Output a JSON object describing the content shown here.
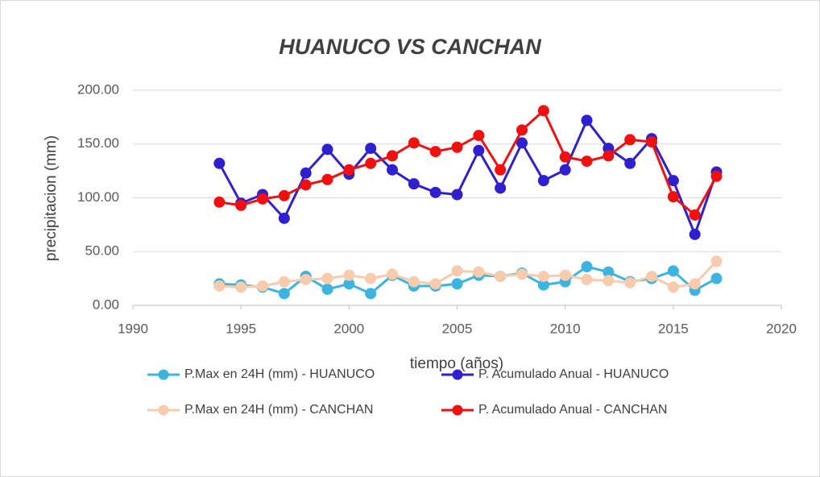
{
  "chart_data": {
    "type": "line",
    "title": "HUANUCO VS CANCHAN",
    "xlabel": "tiempo (años)",
    "ylabel": "precipitacion (mm)",
    "x": [
      1994,
      1995,
      1996,
      1997,
      1998,
      1999,
      2000,
      2001,
      2002,
      2003,
      2004,
      2005,
      2006,
      2007,
      2008,
      2009,
      2010,
      2011,
      2012,
      2013,
      2014,
      2015,
      2016,
      2017
    ],
    "series": [
      {
        "name": "P.Max en 24H (mm) - HUANUCO",
        "color": "#3cb4e0",
        "values": [
          20,
          19,
          17,
          11,
          27,
          15,
          20,
          11,
          28,
          18,
          18,
          20,
          28,
          27,
          30,
          19,
          22,
          36,
          31,
          22,
          25,
          32,
          14,
          25
        ]
      },
      {
        "name": "P. Acumulado Anual - HUANUCO",
        "color": "#2e1fd0",
        "values": [
          132,
          95,
          103,
          81,
          123,
          145,
          122,
          146,
          126,
          113,
          105,
          103,
          144,
          109,
          151,
          116,
          126,
          172,
          146,
          132,
          155,
          116,
          66,
          124
        ]
      },
      {
        "name": "P.Max en 24H (mm) - CANCHAN",
        "color": "#f8cbad",
        "values": [
          18,
          17,
          18,
          22,
          24,
          25,
          28,
          25,
          29,
          22,
          20,
          32,
          31,
          27,
          29,
          27,
          28,
          24,
          23,
          21,
          27,
          17,
          20,
          41
        ]
      },
      {
        "name": "P. Acumulado Anual - CANCHAN",
        "color": "#f01010",
        "values": [
          96,
          93,
          99,
          102,
          112,
          117,
          126,
          132,
          139,
          151,
          143,
          147,
          158,
          126,
          163,
          181,
          138,
          134,
          139,
          154,
          152,
          101,
          84,
          120
        ]
      }
    ],
    "xlim": [
      1990,
      2020
    ],
    "xticks": [
      1990,
      1995,
      2000,
      2005,
      2010,
      2015,
      2020
    ],
    "ylim": [
      0,
      200
    ],
    "yticks": [
      {
        "value": 0,
        "label": "0.00"
      },
      {
        "value": 50,
        "label": "50.00"
      },
      {
        "value": 100,
        "label": "100.00"
      },
      {
        "value": 150,
        "label": "150.00"
      },
      {
        "value": 200,
        "label": "200.00"
      }
    ],
    "grid": true,
    "legend": "bottom"
  }
}
